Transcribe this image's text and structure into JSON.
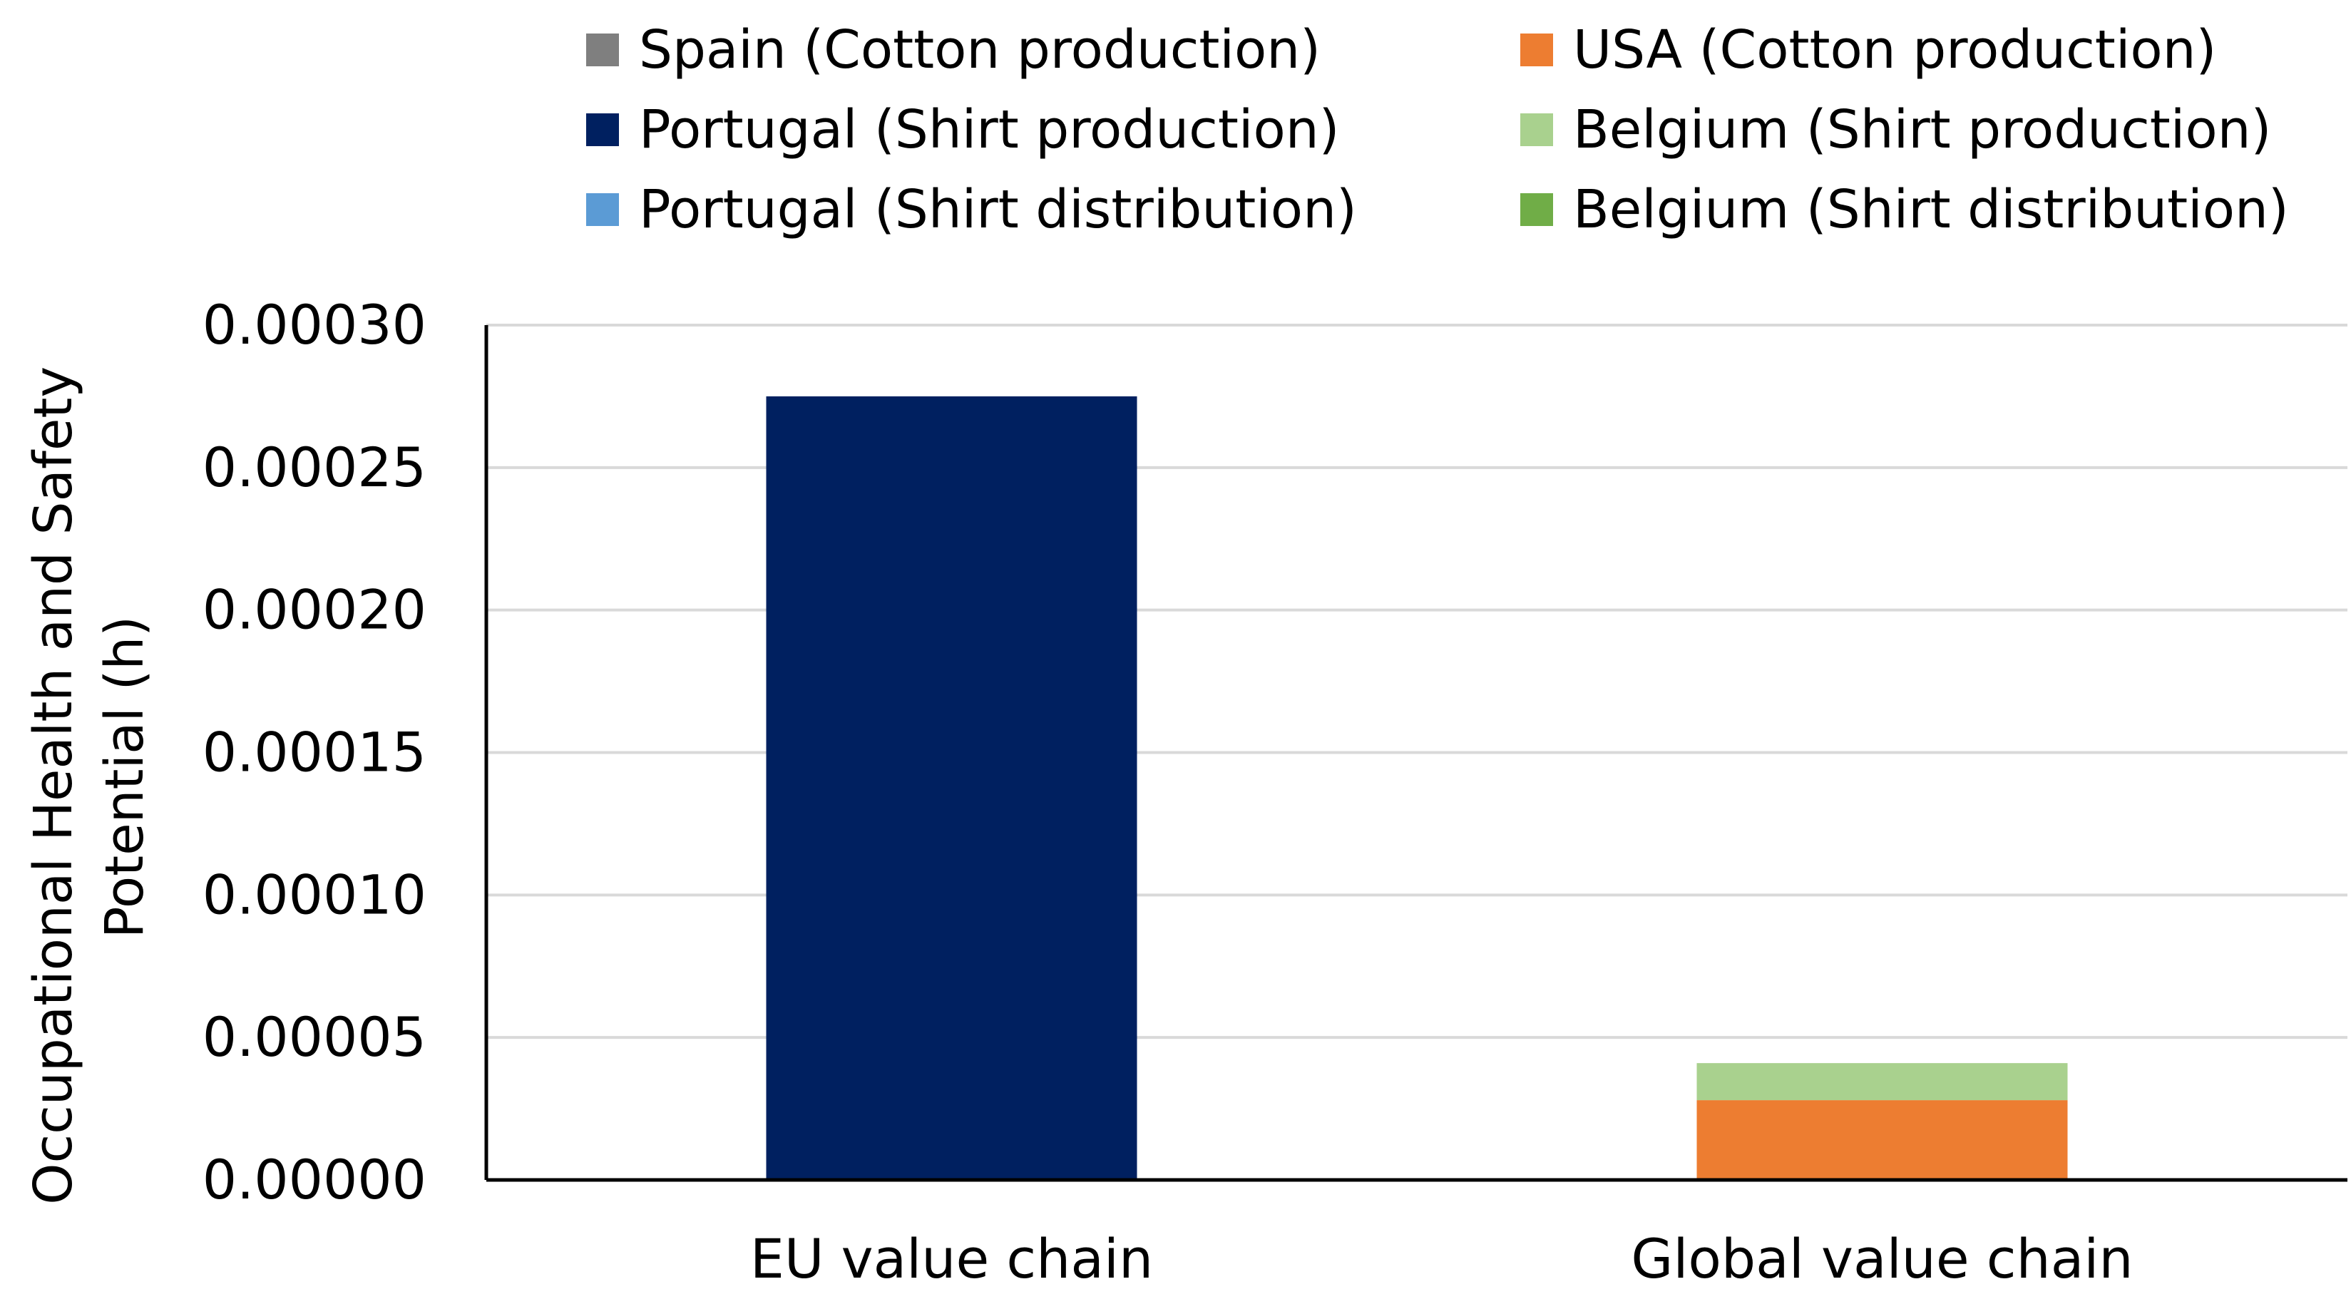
{
  "chart_data": {
    "type": "bar",
    "stacked": true,
    "title": "",
    "xlabel": "",
    "ylabel": "Occupational Health and Safety Potential (h)",
    "ylabel_lines": [
      "Occupational Health and Safety",
      "Potential (h)"
    ],
    "ylim": [
      0,
      0.0003
    ],
    "yticks": [
      "0.00000",
      "0.00005",
      "0.00010",
      "0.00015",
      "0.00020",
      "0.00025",
      "0.00030"
    ],
    "categories": [
      "EU value chain",
      "Global value chain"
    ],
    "legend_position": "top",
    "series": [
      {
        "name": "Spain (Cotton production)",
        "color": "#7f7f7f",
        "values": [
          0,
          0
        ]
      },
      {
        "name": "USA (Cotton production)",
        "color": "#ed7d31",
        "values": [
          0,
          2.8e-05
        ]
      },
      {
        "name": "Portugal (Shirt production)",
        "color": "#002060",
        "values": [
          0.000275,
          0
        ]
      },
      {
        "name": "Belgium (Shirt production)",
        "color": "#a9d18e",
        "values": [
          0,
          1.3e-05
        ]
      },
      {
        "name": "Portugal (Shirt distribution)",
        "color": "#5b9bd5",
        "values": [
          0,
          0
        ]
      },
      {
        "name": "Belgium (Shirt distribution)",
        "color": "#70ad47",
        "values": [
          0,
          0
        ]
      }
    ]
  }
}
